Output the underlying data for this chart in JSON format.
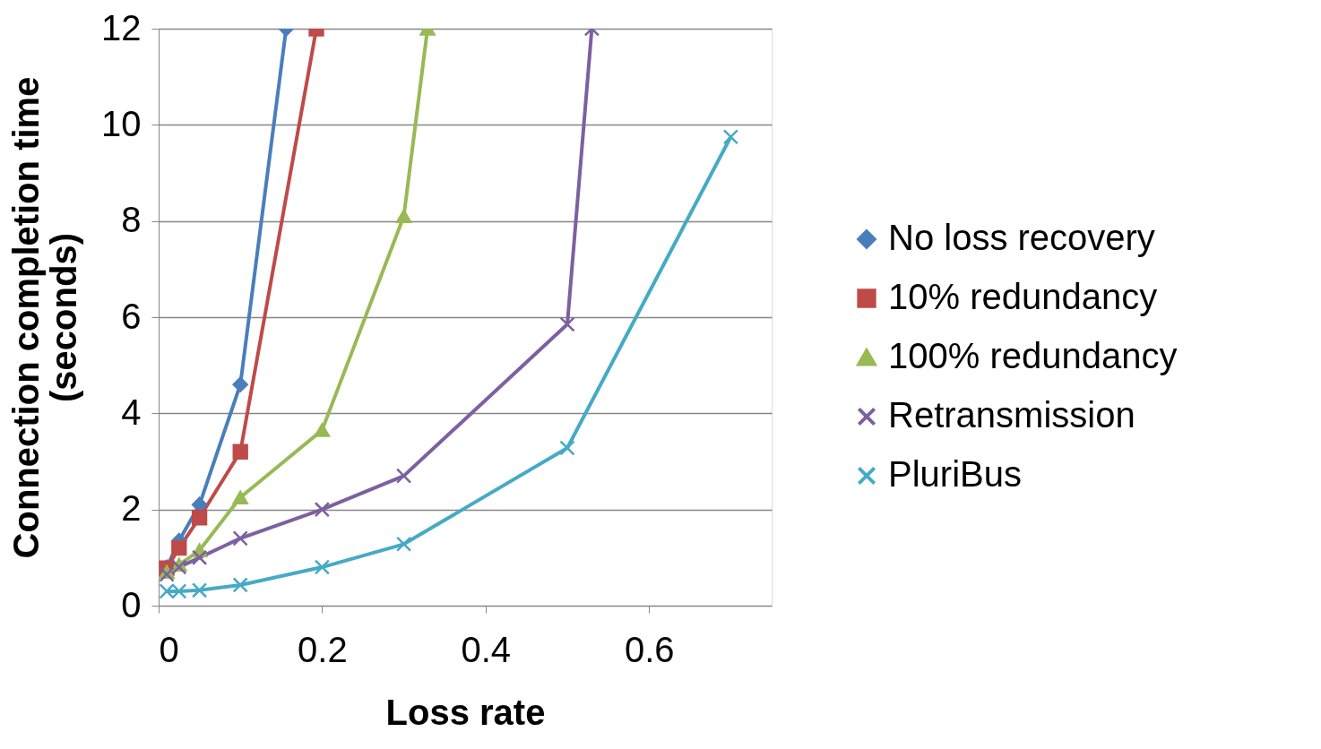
{
  "chart_data": {
    "type": "line",
    "xlabel": "Loss rate",
    "ylabel": "Connection completion time\n(seconds)",
    "xlim": [
      0,
      0.75
    ],
    "xticks": [
      0,
      0.2,
      0.4,
      0.6
    ],
    "ylim": [
      0,
      12
    ],
    "yticks": [
      0,
      2,
      4,
      6,
      8,
      10,
      12
    ],
    "grid": "y",
    "legend": "right",
    "series": [
      {
        "name": "No loss recovery",
        "color": "#4a7ebb",
        "marker": "diamond",
        "x": [
          0.01,
          0.025,
          0.05,
          0.1,
          0.156
        ],
        "values": [
          0.8,
          1.35,
          2.1,
          4.6,
          12
        ]
      },
      {
        "name": "10% redundancy",
        "color": "#be4b48",
        "marker": "square",
        "x": [
          0.01,
          0.025,
          0.05,
          0.1,
          0.193
        ],
        "values": [
          0.78,
          1.2,
          1.83,
          3.2,
          12
        ]
      },
      {
        "name": "100% redundancy",
        "color": "#98b954",
        "marker": "triangle",
        "x": [
          0.01,
          0.025,
          0.05,
          0.1,
          0.2,
          0.3,
          0.329
        ],
        "values": [
          0.7,
          0.85,
          1.15,
          2.25,
          3.65,
          8.1,
          12
        ]
      },
      {
        "name": "Retransmission",
        "color": "#7d60a0",
        "marker": "cross",
        "x": [
          0.01,
          0.025,
          0.05,
          0.1,
          0.2,
          0.3,
          0.5,
          0.53
        ],
        "values": [
          0.65,
          0.8,
          1.0,
          1.4,
          2.0,
          2.7,
          5.85,
          12
        ]
      },
      {
        "name": "PluriBus",
        "color": "#46aac5",
        "marker": "cross",
        "x": [
          0.01,
          0.025,
          0.05,
          0.1,
          0.2,
          0.3,
          0.5,
          0.7
        ],
        "values": [
          0.3,
          0.3,
          0.32,
          0.43,
          0.8,
          1.28,
          3.28,
          9.75
        ]
      }
    ]
  }
}
